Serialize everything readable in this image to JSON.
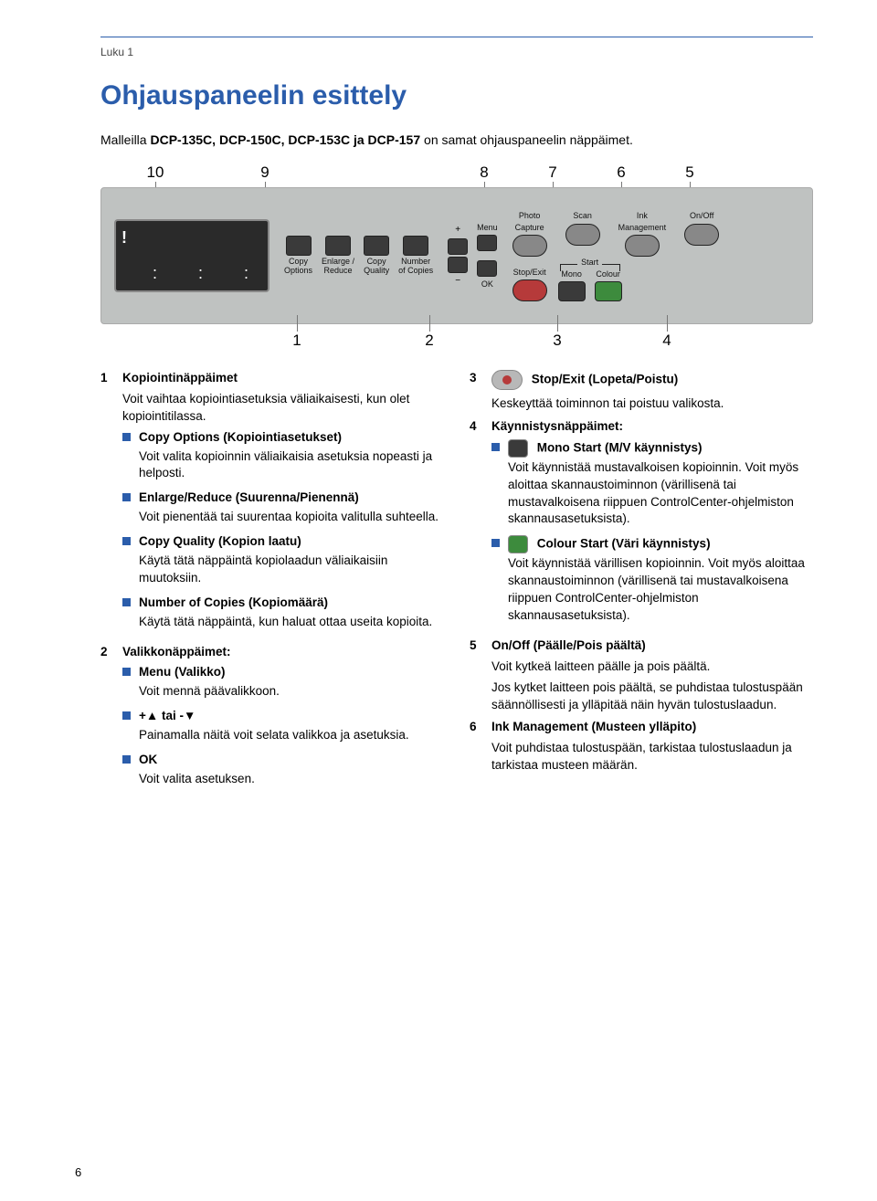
{
  "page": {
    "chapter": "Luku 1",
    "title": "Ohjauspaneelin esittely",
    "subtitle_prefix": "Malleilla ",
    "subtitle_bold": "DCP-135C, DCP-150C, DCP-153C ja DCP-157",
    "subtitle_suffix": " on samat ohjauspaneelin näppäimet.",
    "page_number": "6"
  },
  "panel": {
    "top_leads": [
      "10",
      "9",
      "8",
      "7",
      "6",
      "5"
    ],
    "bottom_leads": [
      "1",
      "2",
      "3",
      "4"
    ],
    "labels": {
      "copy_options": "Copy\nOptions",
      "enlarge_reduce": "Enlarge /\nReduce",
      "copy_quality": "Copy\nQuality",
      "number_copies": "Number\nof Copies",
      "menu": "Menu",
      "plus": "+",
      "minus": "−",
      "ok": "OK",
      "photo_capture": "Photo\nCapture",
      "scan": "Scan",
      "ink_mgmt": "Ink\nManagement",
      "onoff": "On/Off",
      "stop_exit": "Stop/Exit",
      "start": "Start",
      "mono": "Mono",
      "colour": "Colour"
    },
    "colors": {
      "panel_bg": "#bfc2c1",
      "button_dark": "#3a3a3a",
      "stop_red": "#b63a3a",
      "start_green": "#3d8b3d",
      "accent": "#2b5dab"
    }
  },
  "left": {
    "item1": {
      "num": "1",
      "head": "Kopiointinäppäimet",
      "desc": "Voit vaihtaa kopiointiasetuksia väliaikaisesti, kun olet kopiointitilassa.",
      "b1_t": "Copy Options (Kopiointiasetukset)",
      "b1_d": "Voit valita kopioinnin väliaikaisia asetuksia nopeasti ja helposti.",
      "b2_t": "Enlarge/Reduce (Suurenna/Pienennä)",
      "b2_d": "Voit pienentää tai suurentaa kopioita valitulla suhteella.",
      "b3_t": "Copy Quality (Kopion laatu)",
      "b3_d": "Käytä tätä näppäintä kopiolaadun väliaikaisiin muutoksiin.",
      "b4_t": "Number of Copies (Kopiomäärä)",
      "b4_d": "Käytä tätä näppäintä, kun haluat ottaa useita kopioita."
    },
    "item2": {
      "num": "2",
      "head": "Valikkonäppäimet:",
      "b1_t": "Menu (Valikko)",
      "b1_d": "Voit mennä päävalikkoon.",
      "b2_t": "+▲ tai -▼",
      "b2_d": "Painamalla näitä voit selata valikkoa ja asetuksia.",
      "b3_t": "OK",
      "b3_d": "Voit valita asetuksen."
    }
  },
  "right": {
    "item3": {
      "num": "3",
      "head_after_icon": "Stop/Exit (Lopeta/Poistu)",
      "desc": "Keskeyttää toiminnon tai poistuu valikosta."
    },
    "item4": {
      "num": "4",
      "head": "Käynnistysnäppäimet:",
      "b1_t": "Mono Start (M/V käynnistys)",
      "b1_d": "Voit käynnistää mustavalkoisen kopioinnin. Voit myös aloittaa skannaustoiminnon (värillisenä tai mustavalkoisena riippuen ControlCenter-ohjelmiston skannausasetuksista).",
      "b2_t": "Colour Start (Väri käynnistys)",
      "b2_d": "Voit käynnistää värillisen kopioinnin. Voit myös aloittaa skannaustoiminnon (värillisenä tai mustavalkoisena riippuen ControlCenter-ohjelmiston skannausasetuksista)."
    },
    "item5": {
      "num": "5",
      "head": "On/Off (Päälle/Pois päältä)",
      "d1": "Voit kytkeä laitteen päälle ja pois päältä.",
      "d2": "Jos kytket laitteen pois päältä, se puhdistaa tulostuspään säännöllisesti ja ylläpitää näin hyvän tulostuslaadun."
    },
    "item6": {
      "num": "6",
      "head": "Ink Management (Musteen ylläpito)",
      "d1": "Voit puhdistaa tulostuspään, tarkistaa tulostuslaadun ja tarkistaa musteen määrän."
    }
  }
}
